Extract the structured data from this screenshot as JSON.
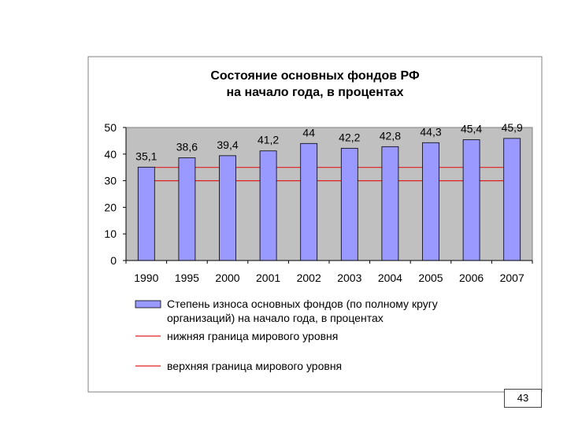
{
  "page_number": "43",
  "chart_data": {
    "type": "bar",
    "title": [
      "Состояние основных фондов РФ",
      "на начало года, в процентах"
    ],
    "xlabel": "",
    "ylabel": "",
    "ylim": [
      0,
      50
    ],
    "yticks": [
      "0",
      "10",
      "20",
      "30",
      "40",
      "50"
    ],
    "grid": false,
    "legend_position": "bottom",
    "categories": [
      "1990",
      "1995",
      "2000",
      "2001",
      "2002",
      "2003",
      "2004",
      "2005",
      "2006",
      "2007"
    ],
    "series": [
      {
        "name": "Степень износа основных фондов (по полному кругу организаций) на начало года, в процентах",
        "legend_lines": [
          "Степень износа основных фондов (по полному кругу",
          "организаций) на начало года, в процентах"
        ],
        "color": "#9999ff",
        "values": [
          35.1,
          38.6,
          39.4,
          41.2,
          44,
          42.2,
          42.8,
          44.3,
          45.4,
          45.9
        ],
        "labels": [
          "35,1",
          "38,6",
          "39,4",
          "41,2",
          "44",
          "42,2",
          "42,8",
          "44,3",
          "45,4",
          "45,9"
        ]
      }
    ],
    "lines": [
      {
        "name": "нижняя граница мирового уровня",
        "value": 30,
        "color": "#e02020"
      },
      {
        "name": "верхняя граница мирового уровня",
        "value": 35,
        "color": "#e02020"
      }
    ],
    "plot_background": "#c0c0c0"
  }
}
